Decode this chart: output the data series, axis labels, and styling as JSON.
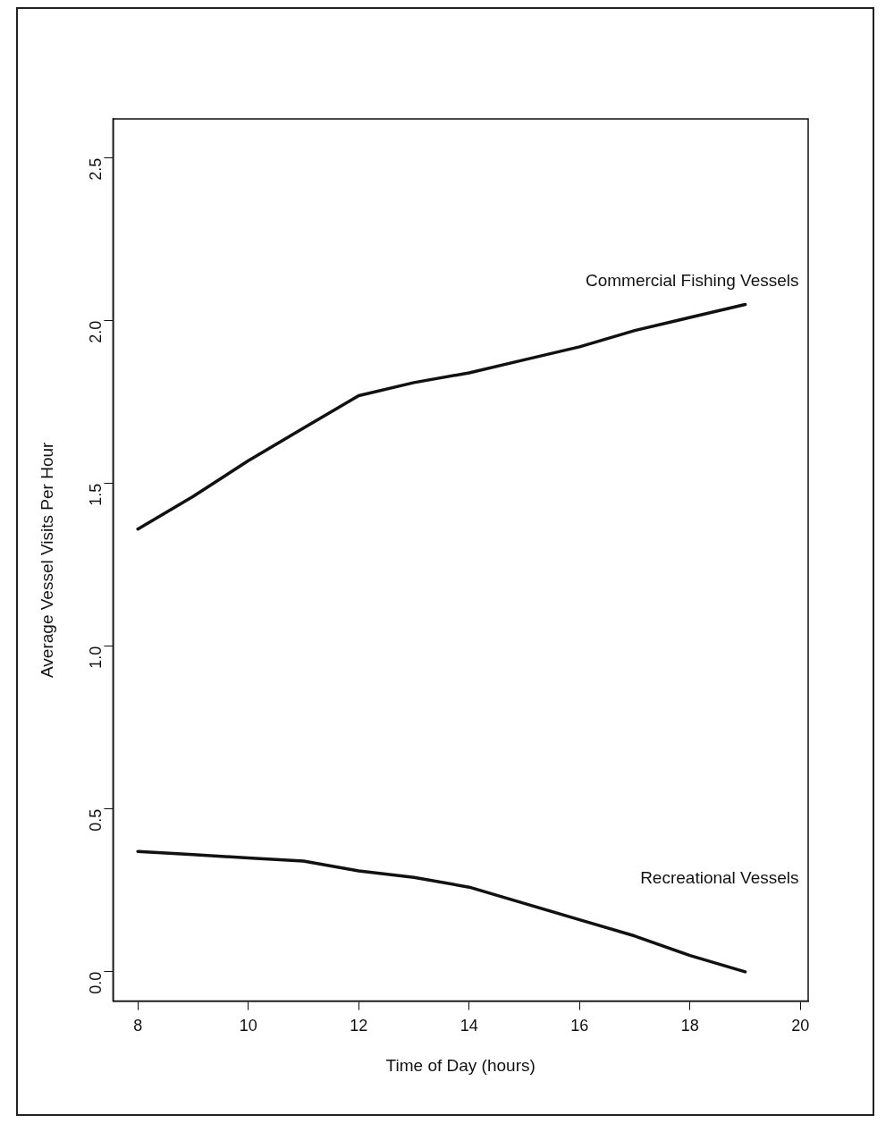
{
  "chart_data": {
    "type": "line",
    "xlabel": "Time of Day (hours)",
    "ylabel": "Average Vessel Visits Per Hour",
    "x": [
      8,
      9,
      10,
      11,
      12,
      13,
      14,
      15,
      16,
      17,
      18,
      19
    ],
    "series": [
      {
        "name": "Commercial Fishing Vessels",
        "color": "#111111",
        "values": [
          1.36,
          1.46,
          1.57,
          1.67,
          1.77,
          1.81,
          1.84,
          1.88,
          1.92,
          1.97,
          2.01,
          2.05
        ]
      },
      {
        "name": "Recreational Vessels",
        "color": "#111111",
        "values": [
          0.37,
          0.36,
          0.35,
          0.34,
          0.31,
          0.29,
          0.26,
          0.21,
          0.16,
          0.11,
          0.05,
          0.0
        ]
      }
    ],
    "xlim": [
      7.55,
      20.14
    ],
    "ylim": [
      -0.09,
      2.62
    ],
    "xticks": [
      8,
      10,
      12,
      14,
      16,
      18,
      20
    ],
    "yticks": [
      {
        "value": 0,
        "label": "0.0"
      },
      {
        "value": 0.5,
        "label": "0.5"
      },
      {
        "value": 1,
        "label": "1.0"
      },
      {
        "value": 1.5,
        "label": "1.5"
      },
      {
        "value": 2,
        "label": "2.0"
      },
      {
        "value": 2.5,
        "label": "2.5"
      }
    ],
    "grid": false,
    "legend": false,
    "marker": "none",
    "line_style": "solid"
  }
}
